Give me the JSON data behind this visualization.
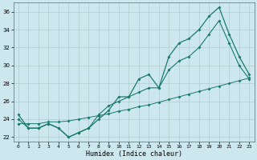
{
  "xlabel": "Humidex (Indice chaleur)",
  "background_color": "#cce8ee",
  "grid_color": "#b0cccc",
  "line_color": "#1a7a6a",
  "x": [
    0,
    1,
    2,
    3,
    4,
    5,
    6,
    7,
    8,
    9,
    10,
    11,
    12,
    13,
    14,
    15,
    16,
    17,
    18,
    19,
    20,
    21,
    22,
    23
  ],
  "y_main": [
    24.5,
    23.0,
    23.0,
    23.5,
    23.0,
    22.0,
    22.5,
    23.0,
    24.0,
    25.0,
    26.5,
    26.5,
    28.5,
    29.0,
    27.5,
    31.0,
    32.5,
    33.0,
    34.0,
    35.5,
    36.5,
    33.5,
    31.0,
    29.0
  ],
  "y_mid": [
    24.0,
    23.0,
    23.0,
    23.5,
    23.0,
    22.0,
    22.5,
    23.0,
    24.5,
    25.5,
    26.0,
    26.5,
    27.0,
    27.5,
    27.5,
    29.5,
    30.5,
    31.0,
    32.0,
    33.5,
    35.0,
    32.5,
    30.0,
    28.5
  ],
  "y_linear": [
    23.5,
    23.5,
    23.5,
    23.7,
    23.7,
    23.8,
    24.0,
    24.2,
    24.4,
    24.6,
    24.9,
    25.1,
    25.4,
    25.6,
    25.9,
    26.2,
    26.5,
    26.8,
    27.1,
    27.4,
    27.7,
    28.0,
    28.3,
    28.6
  ],
  "ylim": [
    21.5,
    37.0
  ],
  "xlim": [
    -0.5,
    23.5
  ],
  "yticks": [
    22,
    24,
    26,
    28,
    30,
    32,
    34,
    36
  ],
  "xticks": [
    0,
    1,
    2,
    3,
    4,
    5,
    6,
    7,
    8,
    9,
    10,
    11,
    12,
    13,
    14,
    15,
    16,
    17,
    18,
    19,
    20,
    21,
    22,
    23
  ],
  "tick_fontsize": 5,
  "xlabel_fontsize": 6
}
